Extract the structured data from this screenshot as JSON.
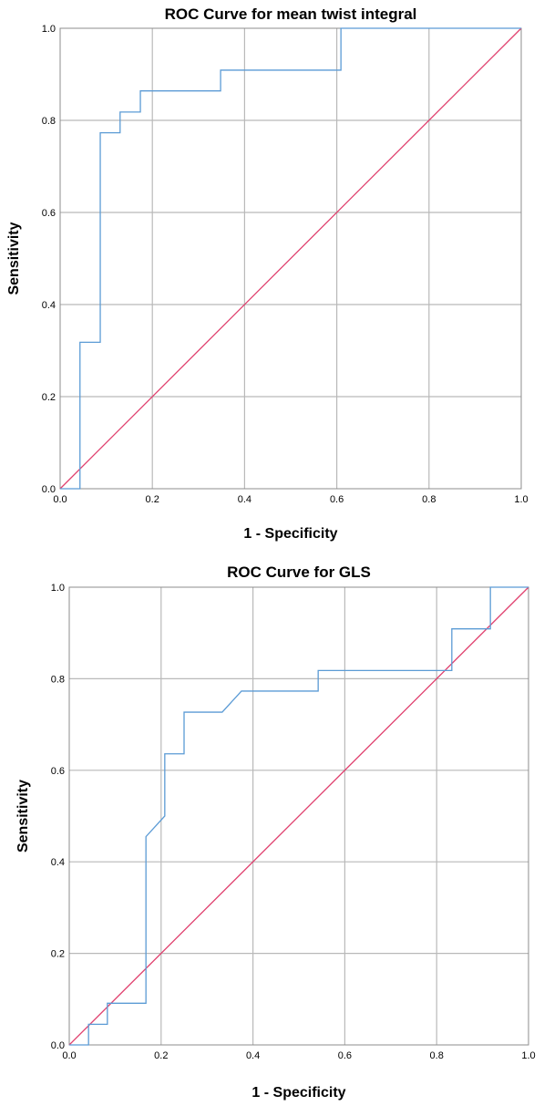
{
  "chart_data": [
    {
      "type": "line",
      "title": "ROC Curve for mean twist integral",
      "xlabel": "1 - Specificity",
      "ylabel": "Sensitivity",
      "xlim": [
        0,
        1
      ],
      "ylim": [
        0,
        1
      ],
      "xticks": [
        "0.0",
        "0.2",
        "0.4",
        "0.6",
        "0.8",
        "1.0"
      ],
      "yticks": [
        "0.0",
        "0.2",
        "0.4",
        "0.6",
        "0.8",
        "1.0"
      ],
      "grid": true,
      "legend": "none",
      "series": [
        {
          "color": "#5b9bd5",
          "points": [
            [
              0,
              0
            ],
            [
              0.043,
              0
            ],
            [
              0.043,
              0.318
            ],
            [
              0.087,
              0.318
            ],
            [
              0.087,
              0.773
            ],
            [
              0.13,
              0.773
            ],
            [
              0.13,
              0.818
            ],
            [
              0.174,
              0.818
            ],
            [
              0.174,
              0.864
            ],
            [
              0.348,
              0.864
            ],
            [
              0.348,
              0.909
            ],
            [
              0.609,
              0.909
            ],
            [
              0.609,
              1.0
            ],
            [
              1.0,
              1.0
            ]
          ]
        },
        {
          "color": "#e0406e",
          "points": [
            [
              0,
              0
            ],
            [
              1,
              1
            ]
          ]
        }
      ]
    },
    {
      "type": "line",
      "title": "ROC Curve for GLS",
      "xlabel": "1 - Specificity",
      "ylabel": "Sensitivity",
      "xlim": [
        0,
        1
      ],
      "ylim": [
        0,
        1
      ],
      "xticks": [
        "0.0",
        "0.2",
        "0.4",
        "0.6",
        "0.8",
        "1.0"
      ],
      "yticks": [
        "0.0",
        "0.2",
        "0.4",
        "0.6",
        "0.8",
        "1.0"
      ],
      "grid": true,
      "legend": "none",
      "series": [
        {
          "color": "#5b9bd5",
          "points": [
            [
              0,
              0
            ],
            [
              0.042,
              0
            ],
            [
              0.042,
              0.045
            ],
            [
              0.083,
              0.045
            ],
            [
              0.083,
              0.091
            ],
            [
              0.167,
              0.091
            ],
            [
              0.167,
              0.455
            ],
            [
              0.208,
              0.5
            ],
            [
              0.208,
              0.636
            ],
            [
              0.25,
              0.636
            ],
            [
              0.25,
              0.727
            ],
            [
              0.333,
              0.727
            ],
            [
              0.375,
              0.773
            ],
            [
              0.542,
              0.773
            ],
            [
              0.542,
              0.818
            ],
            [
              0.833,
              0.818
            ],
            [
              0.833,
              0.909
            ],
            [
              0.917,
              0.909
            ],
            [
              0.917,
              1.0
            ],
            [
              1.0,
              1.0
            ]
          ]
        },
        {
          "color": "#e0406e",
          "points": [
            [
              0,
              0
            ],
            [
              1,
              1
            ]
          ]
        }
      ]
    }
  ]
}
